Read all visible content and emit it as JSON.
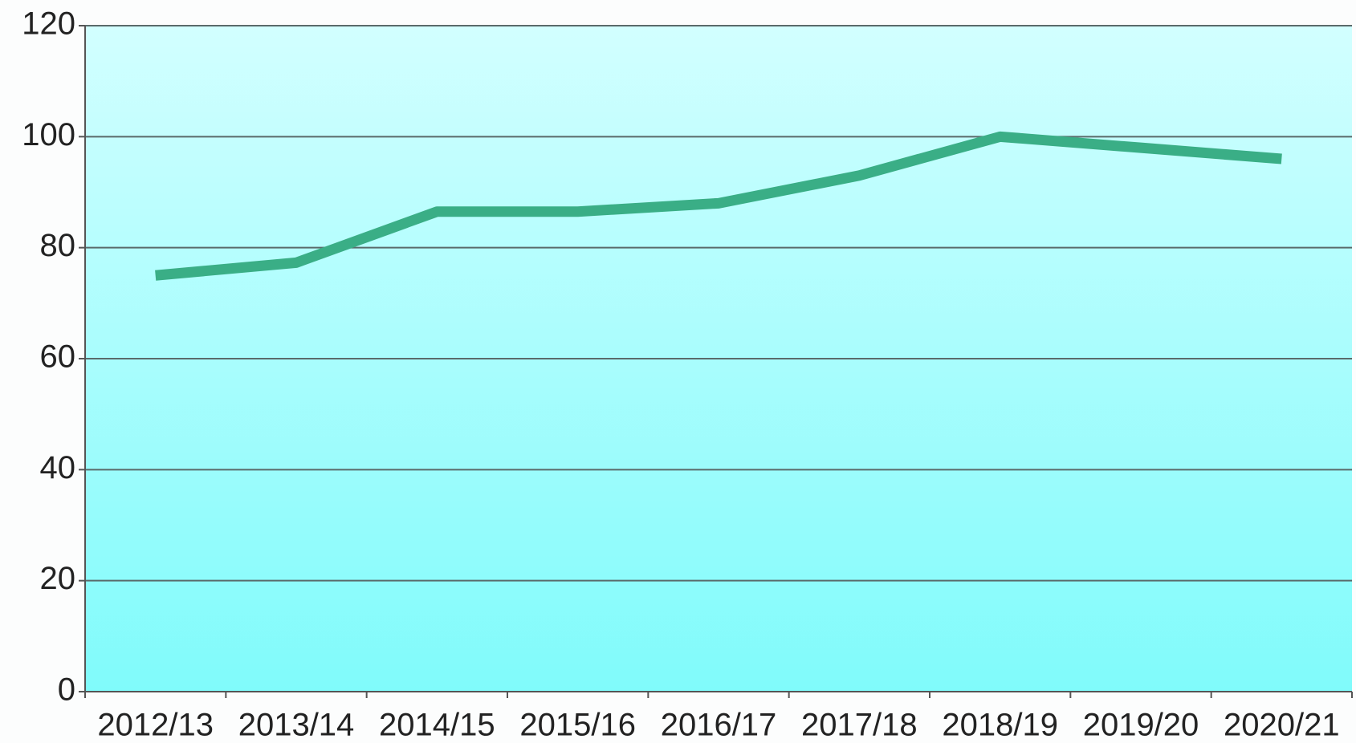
{
  "chart_data": {
    "type": "line",
    "categories": [
      "2012/13",
      "2013/14",
      "2014/15",
      "2015/16",
      "2016/17",
      "2017/18",
      "2018/19",
      "2019/20",
      "2020/21"
    ],
    "series": [
      {
        "name": null,
        "color": "#3aae86",
        "values": [
          75,
          77.3,
          86.5,
          86.5,
          88,
          93,
          100,
          98,
          96
        ]
      }
    ],
    "ylim": [
      0,
      120
    ],
    "yticks": [
      0,
      20,
      40,
      60,
      80,
      100,
      120
    ],
    "grid": true
  }
}
